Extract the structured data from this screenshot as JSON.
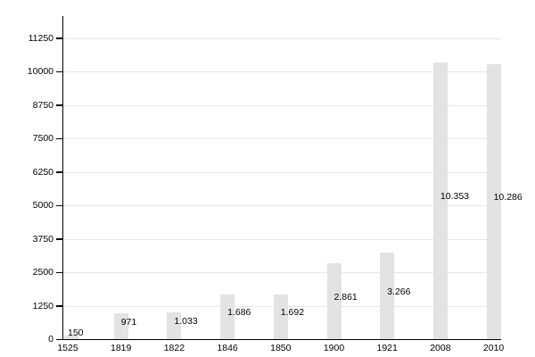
{
  "chart_data": {
    "type": "bar",
    "categories": [
      "1525",
      "1819",
      "1822",
      "1846",
      "1850",
      "1900",
      "1921",
      "2008",
      "2010"
    ],
    "values": [
      150,
      971,
      1033,
      1686,
      1692,
      2861,
      3266,
      10353,
      10286
    ],
    "value_labels": [
      "150",
      "971",
      "1.033",
      "1.686",
      "1.692",
      "2.861",
      "3.266",
      "10.353",
      "10.286"
    ],
    "title": "",
    "xlabel": "",
    "ylabel": "",
    "ylim": [
      0,
      11250
    ],
    "ytick_step": 1250,
    "ytick_labels": [
      "0",
      "1250",
      "2500",
      "3750",
      "5000",
      "6250",
      "7500",
      "8750",
      "10000",
      "11250"
    ],
    "grid": true,
    "legend": false,
    "colors": {
      "bar_fill": "#e3e3e3",
      "gridline": "#e6e6e6",
      "axis": "#000000",
      "text": "#000000",
      "background": "#ffffff"
    }
  }
}
